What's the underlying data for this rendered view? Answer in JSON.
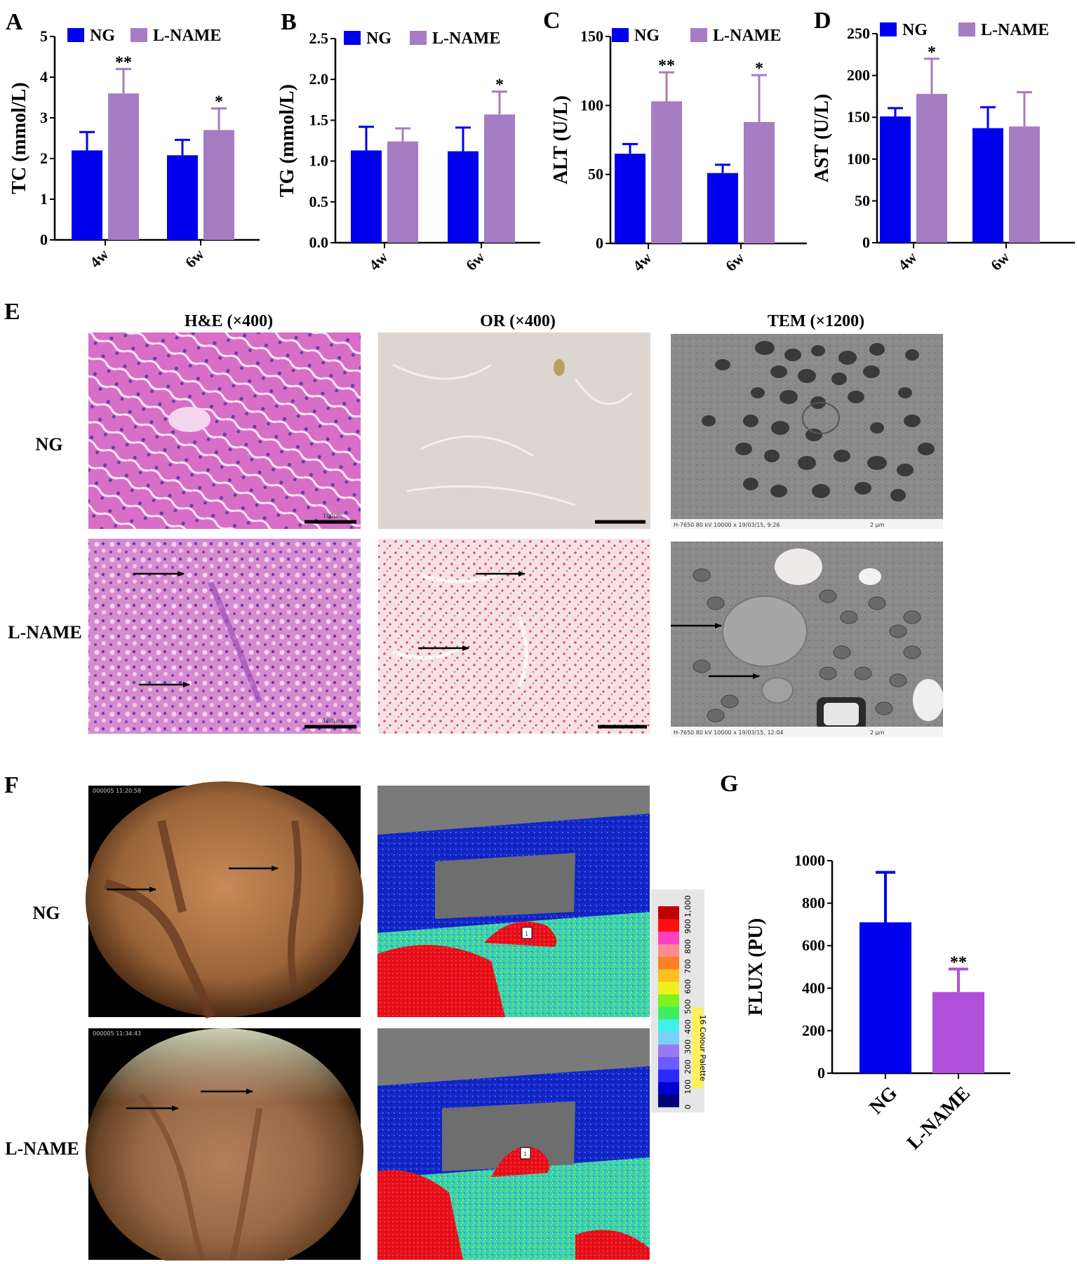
{
  "colors": {
    "ng": "#0000ee",
    "lname": "#a67cc2",
    "lname_g": "#b050d8"
  },
  "chart_data": [
    {
      "panel": "A",
      "type": "bar",
      "categories": [
        "4w",
        "6w"
      ],
      "ylabel": "TC (mmol/L)",
      "ylim": [
        0,
        5
      ],
      "yticks": [
        "0",
        "1",
        "2",
        "3",
        "4",
        "5"
      ],
      "legend": [
        "NG",
        "L-NAME"
      ],
      "series": [
        {
          "name": "NG",
          "values": [
            2.2,
            2.08
          ],
          "err": [
            0.45,
            0.38
          ]
        },
        {
          "name": "L-NAME",
          "values": [
            3.6,
            2.7
          ],
          "err": [
            0.6,
            0.53
          ]
        }
      ],
      "sig": [
        [
          "",
          ""
        ],
        [
          "**",
          "*"
        ]
      ]
    },
    {
      "panel": "B",
      "type": "bar",
      "categories": [
        "4w",
        "6w"
      ],
      "ylabel": "TG (mmol/L)",
      "ylim": [
        0,
        2.5
      ],
      "yticks": [
        "0.0",
        "0.5",
        "1.0",
        "1.5",
        "2.0",
        "2.5"
      ],
      "legend": [
        "NG",
        "L-NAME"
      ],
      "series": [
        {
          "name": "NG",
          "values": [
            1.13,
            1.12
          ],
          "err": [
            0.29,
            0.29
          ]
        },
        {
          "name": "L-NAME",
          "values": [
            1.24,
            1.57
          ],
          "err": [
            0.16,
            0.28
          ]
        }
      ],
      "sig": [
        [
          "",
          ""
        ],
        [
          "",
          "*"
        ]
      ]
    },
    {
      "panel": "C",
      "type": "bar",
      "categories": [
        "4w",
        "6w"
      ],
      "ylabel": "ALT (U/L)",
      "ylim": [
        0,
        150
      ],
      "yticks": [
        "0",
        "50",
        "100",
        "150"
      ],
      "legend": [
        "NG",
        "L-NAME"
      ],
      "series": [
        {
          "name": "NG",
          "values": [
            65,
            51
          ],
          "err": [
            7,
            6
          ]
        },
        {
          "name": "L-NAME",
          "values": [
            103,
            88
          ],
          "err": [
            21,
            34
          ]
        }
      ],
      "sig": [
        [
          "",
          ""
        ],
        [
          "**",
          "*"
        ]
      ]
    },
    {
      "panel": "D",
      "type": "bar",
      "categories": [
        "4w",
        "6w"
      ],
      "ylabel": "AST (U/L)",
      "ylim": [
        0,
        250
      ],
      "yticks": [
        "0",
        "50",
        "100",
        "150",
        "200",
        "250"
      ],
      "legend": [
        "NG",
        "L-NAME"
      ],
      "series": [
        {
          "name": "NG",
          "values": [
            151,
            137
          ],
          "err": [
            10,
            25
          ]
        },
        {
          "name": "L-NAME",
          "values": [
            178,
            139
          ],
          "err": [
            42,
            41
          ]
        }
      ],
      "sig": [
        [
          "",
          ""
        ],
        [
          "*",
          ""
        ]
      ]
    },
    {
      "panel": "G",
      "type": "bar",
      "categories": [
        "NG",
        "L-NAME"
      ],
      "ylabel": "FLUX (PU)",
      "ylim": [
        0,
        1000
      ],
      "yticks": [
        "0",
        "200",
        "400",
        "600",
        "800",
        "1000"
      ],
      "series": [
        {
          "name": "",
          "values": [
            710,
            382
          ],
          "err": [
            235,
            108
          ]
        }
      ],
      "sig": [
        "",
        "**"
      ]
    }
  ],
  "panel_labels": {
    "A": "A",
    "B": "B",
    "C": "C",
    "D": "D",
    "E": "E",
    "F": "F",
    "G": "G"
  },
  "panel_e": {
    "columns": [
      "H&E (×400)",
      "OR (×400)",
      "TEM (×1200)"
    ],
    "rows": [
      "NG",
      "L-NAME"
    ],
    "scale_he": "100μm",
    "tem_caption_1": "H-7650 80 kV 10000 x 19/03/15, 9:26",
    "tem_caption_2": "H-7650 80 kV 10000 x 19/03/15, 12:04",
    "tem_scale": "2 μm"
  },
  "panel_f": {
    "rows": [
      "NG",
      "L-NAME"
    ],
    "timestamp_1": "000005 11:20:58",
    "timestamp_2": "000005 11:34:43",
    "roi_label": "1",
    "colorbar_title": "16 Colour Palette",
    "colorbar_ticks": [
      "0",
      "100",
      "200",
      "300",
      "400",
      "500",
      "600",
      "700",
      "800",
      "900",
      "1,000"
    ]
  }
}
